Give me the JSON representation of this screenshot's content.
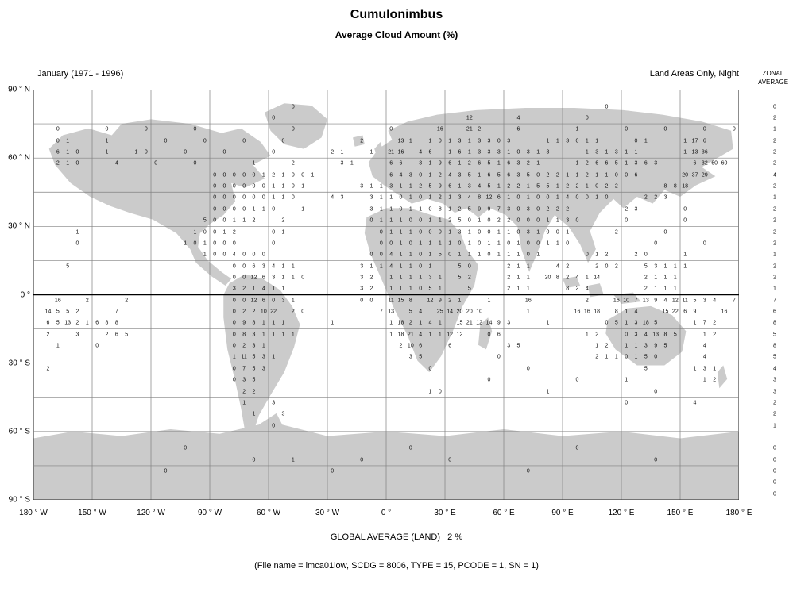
{
  "header": {
    "title": "Cumulonimbus",
    "subtitle": "Average Cloud Amount (%)"
  },
  "map_header": {
    "period": "January (1971 - 1996)",
    "coverage": "Land Areas Only, Night",
    "zonal_label_line1": "ZONAL",
    "zonal_label_line2": "AVERAGE"
  },
  "footer": {
    "global_average": "GLOBAL AVERAGE (LAND)   2 %",
    "file_info": "(File name = lmca01low, SCDG = 8006, TYPE = 15, PCODE = 1, SN = 1)"
  },
  "colors": {
    "land": "#cbcbcb",
    "grid": "#808080",
    "equator": "#000000",
    "frame": "#404040",
    "text": "#000000"
  },
  "chart_data": {
    "type": "heatmap",
    "title": "Cumulonimbus",
    "subtitle": "Average Cloud Amount (%)",
    "period": "January (1971 - 1996)",
    "coverage": "Land Areas Only, Night",
    "lat_ticks": [
      "90 ° N",
      "60 ° N",
      "30 ° N",
      "0 °",
      "30 ° S",
      "60 ° S",
      "90 ° S"
    ],
    "lon_ticks": [
      "180 ° W",
      "150 ° W",
      "120 ° W",
      "90 ° W",
      "60 ° W",
      "30 ° W",
      "0 °",
      "30 ° E",
      "60 ° E",
      "90 ° E",
      "120 ° E",
      "150 ° E",
      "180 ° E"
    ],
    "grid_resolution_deg": 5,
    "lat_range": [
      -90,
      90
    ],
    "lon_range": [
      -180,
      180
    ],
    "zonal_average_label": "ZONAL AVERAGE",
    "zonal_averages": [
      "",
      "0",
      "2",
      "1",
      "2",
      "2",
      "2",
      "4",
      "2",
      "1",
      "2",
      "2",
      "2",
      "2",
      "1",
      "2",
      "2",
      "1",
      "7",
      "6",
      "8",
      "5",
      "8",
      "5",
      "4",
      "3",
      "3",
      "2",
      "2",
      "1",
      "",
      "0",
      "0",
      "0",
      "0",
      "0"
    ],
    "global_average_percent": 2,
    "grid_rows": [
      {
        "r": 1,
        "segs": [
          [
            26,
            "0"
          ],
          [
            58,
            "0"
          ]
        ]
      },
      {
        "r": 2,
        "segs": [
          [
            24,
            "0"
          ],
          [
            44,
            "12"
          ],
          [
            49,
            "4"
          ],
          [
            56,
            "0"
          ]
        ]
      },
      {
        "r": 3,
        "segs": [
          [
            2,
            "0"
          ],
          [
            7,
            "0"
          ],
          [
            11,
            "0"
          ],
          [
            16,
            "0"
          ],
          [
            26,
            "0"
          ],
          [
            36,
            "0"
          ],
          [
            41,
            "16"
          ],
          [
            44,
            "21 2"
          ],
          [
            49,
            "6"
          ],
          [
            55,
            "1"
          ],
          [
            60,
            "0"
          ],
          [
            64,
            "0"
          ],
          [
            68,
            "0"
          ],
          [
            71,
            "0"
          ]
        ]
      },
      {
        "r": 4,
        "segs": [
          [
            2,
            "0 1"
          ],
          [
            7,
            "1"
          ],
          [
            13,
            "0"
          ],
          [
            17,
            "0"
          ],
          [
            21,
            "0"
          ],
          [
            25,
            "0"
          ],
          [
            33,
            "2"
          ],
          [
            37,
            "13 1"
          ],
          [
            40,
            "1 0 1 3 1 3 3 0 3"
          ],
          [
            52,
            "1 1 3 0 1 1"
          ],
          [
            61,
            "0 1"
          ],
          [
            66,
            "1 17 6"
          ]
        ]
      },
      {
        "r": 5,
        "segs": [
          [
            2,
            "6 1 0"
          ],
          [
            7,
            "1"
          ],
          [
            10,
            "1 0"
          ],
          [
            15,
            "0"
          ],
          [
            19,
            "0"
          ],
          [
            24,
            "0"
          ],
          [
            30,
            "2 1"
          ],
          [
            34,
            "1"
          ],
          [
            36,
            "21 16"
          ],
          [
            39,
            "4 6"
          ],
          [
            42,
            "1 6 1 3 3 3 1 0 3 1 3"
          ],
          [
            56,
            "1 3 1 3 1 1"
          ],
          [
            66,
            "1 13 36"
          ]
        ]
      },
      {
        "r": 6,
        "segs": [
          [
            2,
            "2 1 0"
          ],
          [
            8,
            "4"
          ],
          [
            12,
            "0"
          ],
          [
            16,
            "0"
          ],
          [
            22,
            "1"
          ],
          [
            26,
            "2"
          ],
          [
            31,
            "3 1"
          ],
          [
            36,
            "6 6"
          ],
          [
            39,
            "3 1 9 6 1 2 6 5 1 6 3 2 1"
          ],
          [
            55,
            "1 2 6 6 5 1 3 6 3"
          ],
          [
            67,
            "6 32 60 60"
          ]
        ]
      },
      {
        "r": 7,
        "segs": [
          [
            18,
            "0 0 0 0 0 1 2 1 0 0 1"
          ],
          [
            36,
            "6 4 3 0 1 2 4 3 5 1 6 5 6 3 5 0 2 2 1 1 2 1 1 0 0 6"
          ],
          [
            66,
            "20 37 29"
          ]
        ]
      },
      {
        "r": 8,
        "segs": [
          [
            18,
            "0 0 0 0 0 0 1 1 0 1"
          ],
          [
            33,
            "3 1 1 3 1 1 2 5 9 6 1 3 4 5 1 2 2 1 5 5 1 2 2 1 0 2 2"
          ],
          [
            64,
            "8 8 18"
          ]
        ]
      },
      {
        "r": 9,
        "segs": [
          [
            18,
            "0 0 0 0 0 0 1 1 0"
          ],
          [
            30,
            "4 3"
          ],
          [
            34,
            "3 1 1 0 1 0 1 2 1 3 4 8 12 6 1 0 1 0 0 1 4 0 0 1 0"
          ],
          [
            62,
            "2 2 3"
          ]
        ]
      },
      {
        "r": 10,
        "segs": [
          [
            18,
            "0 0 0 0 1 1 0"
          ],
          [
            27,
            "1"
          ],
          [
            34,
            "3 1 1 0 1 1 0 8 1 2 5 9 9 7 3 0 3 0 2 2 2"
          ],
          [
            60,
            "2 3"
          ],
          [
            66,
            "0"
          ]
        ]
      },
      {
        "r": 11,
        "segs": [
          [
            17,
            "5 0 0 1 1 2"
          ],
          [
            25,
            "2"
          ],
          [
            34,
            "0 1 1 1 0 0 1 1 2 5 0 1 0 2 2 0 0 0 1 1 3 0"
          ],
          [
            60,
            "0"
          ],
          [
            66,
            "0"
          ]
        ]
      },
      {
        "r": 12,
        "segs": [
          [
            4,
            "1"
          ],
          [
            16,
            "1 0 0 1 2"
          ],
          [
            24,
            "0 1"
          ],
          [
            35,
            "0 1 1 1 0 0 0 1 3 1 0 0 1 1 0 3 1 0 0 1"
          ],
          [
            59,
            "2"
          ],
          [
            64,
            "0"
          ]
        ]
      },
      {
        "r": 13,
        "segs": [
          [
            4,
            "0"
          ],
          [
            15,
            "1 0 1 0 0 0"
          ],
          [
            24,
            "0"
          ],
          [
            35,
            "0 0 1 0 1 1 1 1 0 1 0 1 1 0 1 0 0 1 1 0"
          ],
          [
            63,
            "0"
          ],
          [
            68,
            "0"
          ]
        ]
      },
      {
        "r": 14,
        "segs": [
          [
            17,
            "1 0 0 4 0 0 0"
          ],
          [
            34,
            "0 0 4 1 1 0 1 5 0 1 1 1 0 1 1 1 0 1"
          ],
          [
            56,
            "0 1 2"
          ],
          [
            61,
            "2 0"
          ],
          [
            66,
            "1"
          ]
        ]
      },
      {
        "r": 15,
        "segs": [
          [
            3,
            "5"
          ],
          [
            20,
            "0 0 6 3 4 1 1"
          ],
          [
            33,
            "3 1 1 4 1 1 0 1"
          ],
          [
            43,
            "5 0"
          ],
          [
            48,
            "2 1 1"
          ],
          [
            53,
            "4 2"
          ],
          [
            57,
            "2 0 2"
          ],
          [
            62,
            "5 3 1 1 1"
          ]
        ]
      },
      {
        "r": 16,
        "segs": [
          [
            20,
            "0 0 12 6 3 1 1 0"
          ],
          [
            33,
            "3 2"
          ],
          [
            36,
            "1 1 1 1 3 1"
          ],
          [
            43,
            "5 2"
          ],
          [
            48,
            "2 1 1"
          ],
          [
            52,
            "20 8 2 4 1 14"
          ],
          [
            62,
            "2 1 1 1"
          ]
        ]
      },
      {
        "r": 17,
        "segs": [
          [
            20,
            "3 2 1 4 1 1"
          ],
          [
            33,
            "3 2"
          ],
          [
            36,
            "1 1 1 0 5 1"
          ],
          [
            44,
            "5"
          ],
          [
            48,
            "2 1 1"
          ],
          [
            54,
            "8 2 4"
          ],
          [
            62,
            "2 1 1 1"
          ]
        ]
      },
      {
        "r": 18,
        "segs": [
          [
            2,
            "16"
          ],
          [
            5,
            "2"
          ],
          [
            9,
            "2"
          ],
          [
            20,
            "0 0 12 6 0 3 1"
          ],
          [
            33,
            "0 0"
          ],
          [
            36,
            "11 15 8"
          ],
          [
            40,
            "12 9 2 1"
          ],
          [
            46,
            "1"
          ],
          [
            50,
            "16"
          ],
          [
            56,
            "2"
          ],
          [
            59,
            "16 10 7 13 9 4 12 11 5 3 4"
          ],
          [
            71,
            "7"
          ]
        ]
      },
      {
        "r": 19,
        "segs": [
          [
            1,
            "14 5 5 2"
          ],
          [
            8,
            "7"
          ],
          [
            20,
            "0 2 2 10 22"
          ],
          [
            26,
            "2 0"
          ],
          [
            35,
            "7 13"
          ],
          [
            38,
            "5 4"
          ],
          [
            41,
            "25 14 20 20 10"
          ],
          [
            50,
            "1"
          ],
          [
            55,
            "16 16 18"
          ],
          [
            59,
            "8 1 4"
          ],
          [
            64,
            "15 22 6 9"
          ],
          [
            70,
            "16"
          ]
        ]
      },
      {
        "r": 20,
        "segs": [
          [
            1,
            "6 5 13 2 1 6 8 8"
          ],
          [
            20,
            "0 9 8 1 1 1"
          ],
          [
            30,
            "1"
          ],
          [
            36,
            "1 18 2 1 4 1"
          ],
          [
            43,
            "15 21 12 14 9 3"
          ],
          [
            52,
            "1"
          ],
          [
            58,
            "0 5 1 3 18 5"
          ],
          [
            67,
            "1 7 2"
          ]
        ]
      },
      {
        "r": 21,
        "segs": [
          [
            1,
            "2"
          ],
          [
            4,
            "3"
          ],
          [
            7,
            "2 6 5"
          ],
          [
            20,
            "0 8 3 1 1 1 1"
          ],
          [
            36,
            "1 18 21 4 1 1 12 12"
          ],
          [
            46,
            "0 6"
          ],
          [
            56,
            "1 2"
          ],
          [
            60,
            "0 3 4 13 8 5"
          ],
          [
            68,
            "1 2"
          ]
        ]
      },
      {
        "r": 22,
        "segs": [
          [
            2,
            "1"
          ],
          [
            6,
            "0"
          ],
          [
            20,
            "0 2 3 1"
          ],
          [
            37,
            "2 10 6"
          ],
          [
            42,
            "6"
          ],
          [
            48,
            "3 5"
          ],
          [
            57,
            "1 2"
          ],
          [
            60,
            "1 1 3 9 5"
          ],
          [
            68,
            "4"
          ]
        ]
      },
      {
        "r": 23,
        "segs": [
          [
            20,
            "1 11 5 3 1"
          ],
          [
            38,
            "3 5"
          ],
          [
            47,
            "0"
          ],
          [
            57,
            "2 1 1 0 1 5 0"
          ],
          [
            68,
            "4"
          ]
        ]
      },
      {
        "r": 24,
        "segs": [
          [
            1,
            "2"
          ],
          [
            20,
            "0 7 5 3"
          ],
          [
            40,
            "0"
          ],
          [
            50,
            "0"
          ],
          [
            62,
            "5"
          ],
          [
            67,
            "1 3 1"
          ]
        ]
      },
      {
        "r": 25,
        "segs": [
          [
            20,
            "0 3 5"
          ],
          [
            46,
            "0"
          ],
          [
            55,
            "0"
          ],
          [
            60,
            "1"
          ],
          [
            68,
            "1 2"
          ]
        ]
      },
      {
        "r": 26,
        "segs": [
          [
            21,
            "2 2"
          ],
          [
            40,
            "1 0"
          ],
          [
            52,
            "1"
          ],
          [
            63,
            "0"
          ]
        ]
      },
      {
        "r": 27,
        "segs": [
          [
            21,
            "1"
          ],
          [
            24,
            "3"
          ],
          [
            60,
            "0"
          ],
          [
            67,
            "4"
          ]
        ]
      },
      {
        "r": 28,
        "segs": [
          [
            22,
            "1"
          ],
          [
            25,
            "3"
          ]
        ]
      },
      {
        "r": 29,
        "segs": [
          [
            24,
            "0"
          ]
        ]
      },
      {
        "r": 31,
        "segs": [
          [
            15,
            "0"
          ],
          [
            38,
            "0"
          ],
          [
            55,
            "0"
          ]
        ]
      },
      {
        "r": 32,
        "segs": [
          [
            22,
            "0"
          ],
          [
            26,
            "1"
          ],
          [
            33,
            "0"
          ],
          [
            42,
            "0"
          ],
          [
            63,
            "0"
          ]
        ]
      },
      {
        "r": 33,
        "segs": [
          [
            13,
            "0"
          ],
          [
            30,
            "0"
          ],
          [
            50,
            "0"
          ]
        ]
      }
    ]
  }
}
